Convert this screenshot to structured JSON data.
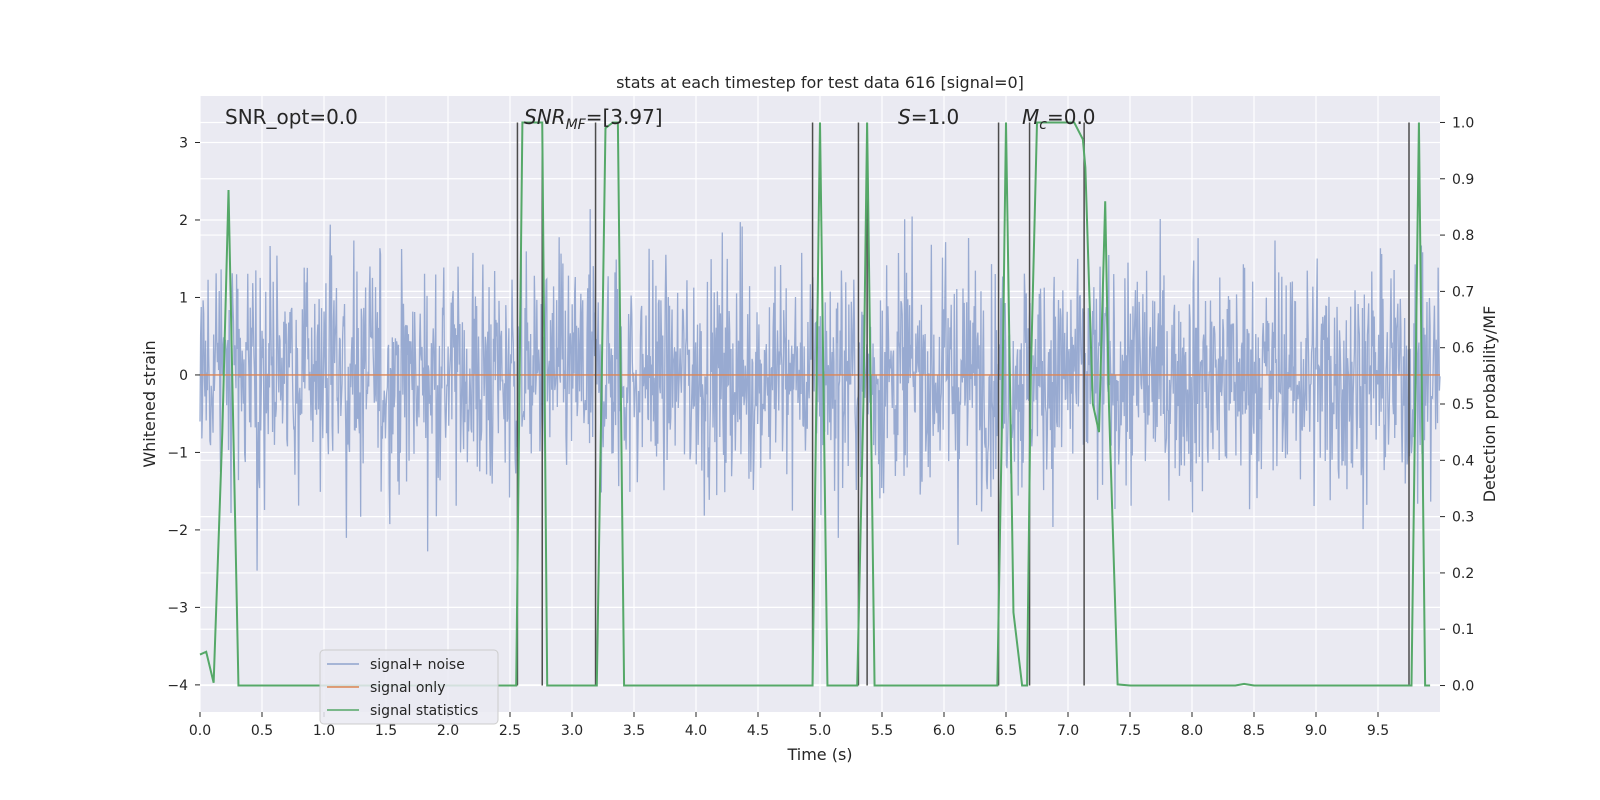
{
  "chart_data": {
    "type": "line",
    "title": "stats at each timestep for test data 616 [signal=0]",
    "xlabel": "Time (s)",
    "ylabel_left": "Whitened strain",
    "ylabel_right": "Detection probability/MF",
    "xlim": [
      0,
      10
    ],
    "ylim_left": [
      -4.35,
      3.6
    ],
    "ylim_right": [
      -0.047,
      1.047
    ],
    "x_ticks": [
      0.0,
      0.5,
      1.0,
      1.5,
      2.0,
      2.5,
      3.0,
      3.5,
      4.0,
      4.5,
      5.0,
      5.5,
      6.0,
      6.5,
      7.0,
      7.5,
      8.0,
      8.5,
      9.0,
      9.5
    ],
    "x_tick_labels": [
      "0.0",
      "0.5",
      "1.0",
      "1.5",
      "2.0",
      "2.5",
      "3.0",
      "3.5",
      "4.0",
      "4.5",
      "5.0",
      "5.5",
      "6.0",
      "6.5",
      "7.0",
      "7.5",
      "8.0",
      "8.5",
      "9.0",
      "9.5"
    ],
    "y_ticks_left": [
      -4,
      -3,
      -2,
      -1,
      0,
      1,
      2,
      3
    ],
    "y_tick_labels_left": [
      "−4",
      "−3",
      "−2",
      "−1",
      "0",
      "1",
      "2",
      "3"
    ],
    "y_ticks_right": [
      0.0,
      0.1,
      0.2,
      0.3,
      0.4,
      0.5,
      0.6,
      0.7,
      0.8,
      0.9,
      1.0
    ],
    "y_tick_labels_right": [
      "0.0",
      "0.1",
      "0.2",
      "0.3",
      "0.4",
      "0.5",
      "0.6",
      "0.7",
      "0.8",
      "0.9",
      "1.0"
    ],
    "grid": true,
    "legend_placement": "lower-left",
    "annotations": {
      "snr_opt": "SNR_opt=0.0",
      "snr_mf_base": "SNR",
      "snr_mf_sub": "MF",
      "snr_mf_value": "=[3.97]",
      "s_var": "S",
      "s_value": "=1.0",
      "mc_var": "M",
      "mc_sub": "c",
      "mc_value": "=0.0"
    },
    "series": [
      {
        "name": "signal+ noise",
        "axis": "left",
        "color": "#8fa3cd",
        "noise_sample_count": 2000,
        "noise_typical_range": [
          -1.7,
          1.8
        ],
        "noise_extreme_range": [
          -3.6,
          3.3
        ]
      },
      {
        "name": "signal only",
        "axis": "left",
        "color": "#dd8452",
        "x": [
          0,
          10
        ],
        "y": [
          0,
          0
        ]
      },
      {
        "name": "signal statistics",
        "axis": "right",
        "color": "#55a868",
        "x": [
          0.0,
          0.05,
          0.11,
          0.18,
          0.23,
          0.26,
          0.31,
          0.5,
          1.0,
          1.5,
          2.0,
          2.55,
          2.6,
          2.65,
          2.76,
          2.8,
          3.0,
          3.2,
          3.24,
          3.27,
          3.33,
          3.37,
          3.42,
          4.0,
          4.5,
          4.94,
          4.97,
          5.0,
          5.06,
          5.3,
          5.35,
          5.38,
          5.44,
          6.0,
          6.43,
          6.47,
          6.5,
          6.56,
          6.63,
          6.67,
          6.7,
          6.75,
          7.0,
          7.05,
          7.12,
          7.14,
          7.2,
          7.25,
          7.3,
          7.33,
          7.4,
          7.5,
          8.0,
          8.35,
          8.42,
          8.5,
          9.0,
          9.5,
          9.77,
          9.8,
          9.83,
          9.88,
          9.92
        ],
        "y": [
          0.055,
          0.06,
          0.005,
          0.45,
          0.88,
          0.55,
          0.0,
          0.0,
          0.0,
          0.0,
          0.0,
          0.0,
          1.0,
          1.0,
          1.0,
          0.0,
          0.0,
          0.0,
          0.55,
          0.99,
          1.0,
          1.0,
          0.0,
          0.0,
          0.0,
          0.0,
          0.5,
          1.0,
          0.0,
          0.0,
          0.5,
          1.0,
          0.0,
          0.0,
          0.0,
          0.5,
          1.0,
          0.13,
          0.0,
          0.0,
          0.55,
          1.0,
          1.0,
          1.0,
          0.97,
          0.92,
          0.5,
          0.45,
          0.86,
          0.5,
          0.002,
          0.0,
          0.0,
          0.0,
          0.003,
          0.0,
          0.0,
          0.0,
          0.0,
          0.5,
          1.0,
          0.0,
          0.0
        ]
      }
    ],
    "vertical_lines_x": [
      2.56,
      2.76,
      3.19,
      4.94,
      5.31,
      5.38,
      6.44,
      6.69,
      7.13,
      9.75
    ]
  }
}
